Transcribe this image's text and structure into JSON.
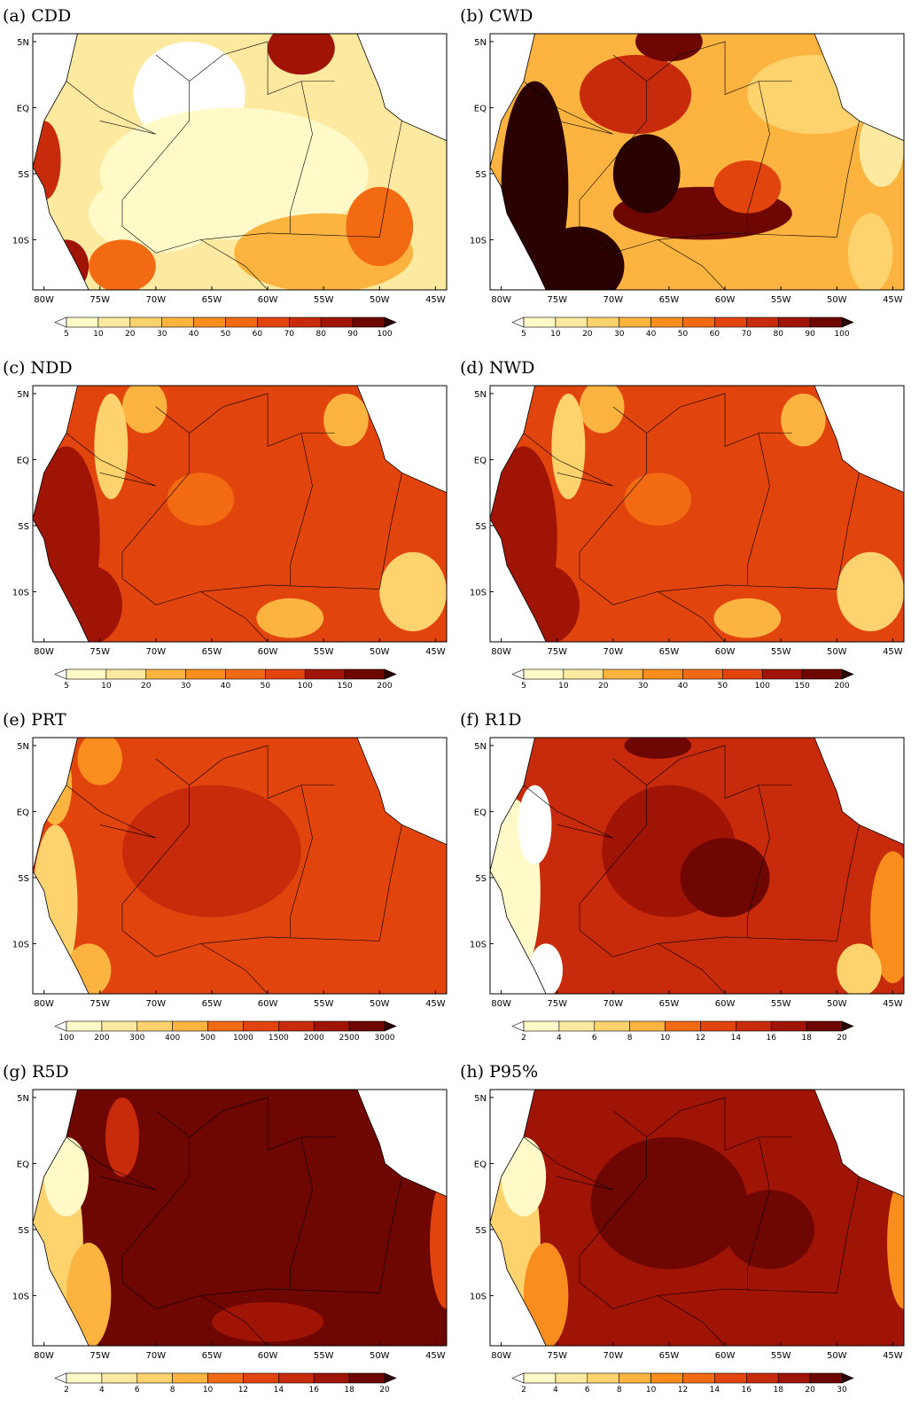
{
  "lon_labels": [
    "80W",
    "75W",
    "70W",
    "65W",
    "60W",
    "55W",
    "50W",
    "45W"
  ],
  "lat_labels": [
    "5N",
    "EQ",
    "5S",
    "10S"
  ],
  "colormap": [
    "#ffffff",
    "#fffac8",
    "#fee9a0",
    "#fed36e",
    "#fdb340",
    "#f98e1e",
    "#f26a12",
    "#e2440e",
    "#c82b0b",
    "#a01406",
    "#6e0602",
    "#2a0000"
  ],
  "panels": [
    {
      "label": "(a)  CDD",
      "colorbar": [
        5,
        10,
        20,
        30,
        40,
        50,
        60,
        70,
        80,
        90,
        100
      ]
    },
    {
      "label": "(b)  CWD",
      "colorbar": [
        5,
        10,
        20,
        30,
        40,
        50,
        60,
        70,
        80,
        90,
        100
      ]
    },
    {
      "label": "(c)  NDD",
      "colorbar": [
        5,
        10,
        20,
        30,
        40,
        50,
        100,
        150,
        200
      ]
    },
    {
      "label": "(d)  NWD",
      "colorbar": [
        5,
        10,
        20,
        30,
        40,
        50,
        100,
        150,
        200
      ]
    },
    {
      "label": "(e)  PRT",
      "colorbar": [
        100,
        200,
        300,
        400,
        500,
        1000,
        1500,
        2000,
        2500,
        3000
      ]
    },
    {
      "label": "(f)  R1D",
      "colorbar": [
        2,
        4,
        6,
        8,
        10,
        12,
        14,
        16,
        18,
        20
      ]
    },
    {
      "label": "(g)  R5D",
      "colorbar": [
        2,
        4,
        6,
        8,
        10,
        12,
        14,
        16,
        18,
        20
      ]
    },
    {
      "label": "(h)  P95%",
      "colorbar": [
        2,
        4,
        6,
        8,
        10,
        12,
        14,
        16,
        18,
        20,
        30
      ]
    }
  ]
}
